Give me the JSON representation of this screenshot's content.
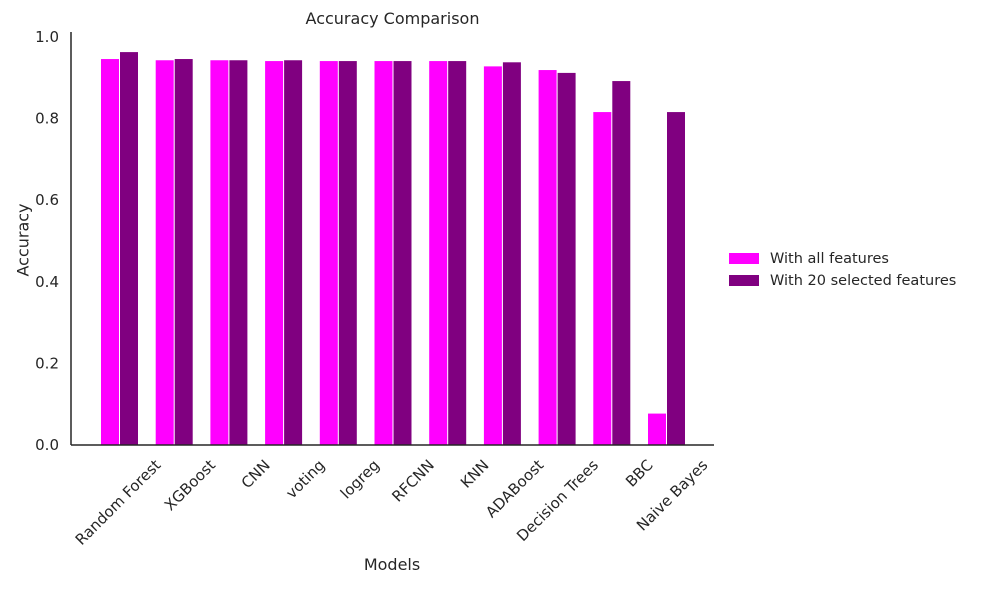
{
  "chart_data": {
    "type": "bar",
    "title": "Accuracy Comparison",
    "xlabel": "Models",
    "ylabel": "Accuracy",
    "ylim": [
      0,
      1.0
    ],
    "yticks": [
      "0.0",
      "0.2",
      "0.4",
      "0.6",
      "0.8",
      "1.0"
    ],
    "grid": false,
    "legend_position": "center-right",
    "categories": [
      "Random Forest",
      "XGBoost",
      "CNN",
      "voting",
      "logreg",
      "RFCNN",
      "KNN",
      "ADABoost",
      "Decision Trees",
      "BBC",
      "Naive Bayes"
    ],
    "series": [
      {
        "name": "With all features",
        "color": "#ff00ff",
        "values": [
          0.946,
          0.943,
          0.943,
          0.941,
          0.941,
          0.941,
          0.941,
          0.928,
          0.919,
          0.816,
          0.077
        ]
      },
      {
        "name": "With 20 selected features",
        "color": "#800080",
        "values": [
          0.963,
          0.946,
          0.943,
          0.943,
          0.941,
          0.941,
          0.941,
          0.938,
          0.912,
          0.892,
          0.816
        ]
      }
    ]
  }
}
